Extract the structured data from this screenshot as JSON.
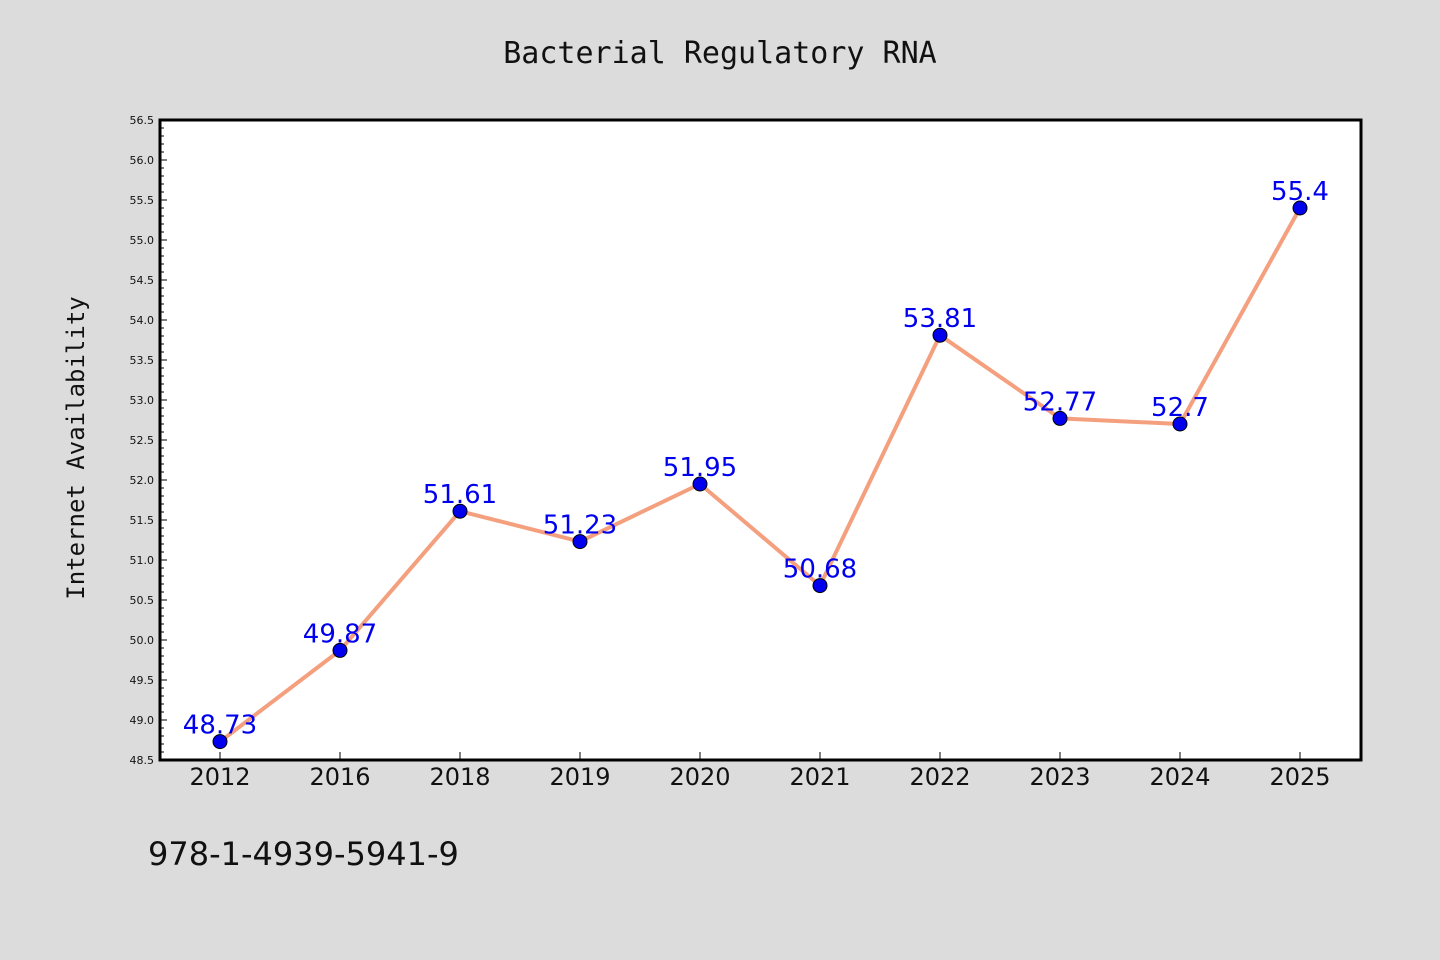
{
  "chart_data": {
    "type": "line",
    "title": "Bacterial Regulatory RNA",
    "xlabel": "",
    "ylabel": "Internet Availability",
    "categories": [
      "2012",
      "2016",
      "2018",
      "2019",
      "2020",
      "2021",
      "2022",
      "2023",
      "2024",
      "2025"
    ],
    "series": [
      {
        "values": [
          48.73,
          49.87,
          51.61,
          51.23,
          51.95,
          50.68,
          53.81,
          52.77,
          52.7,
          55.4
        ],
        "data_labels": [
          "48.73",
          "49.87",
          "51.61",
          "51.23",
          "51.95",
          "50.68",
          "53.81",
          "52.77",
          "52.7",
          "55.4"
        ]
      }
    ],
    "ylim": [
      48.5,
      56.5
    ],
    "yticks": [
      "48.5",
      "49.0",
      "49.5",
      "50.0",
      "50.5",
      "51.0",
      "51.5",
      "52.0",
      "52.5",
      "53.0",
      "53.5",
      "54.0",
      "54.5",
      "55.0",
      "55.5",
      "56.0",
      "56.5"
    ],
    "grid": false,
    "legend": "none",
    "colors": {
      "background": "#dcdcdc",
      "plot_area": "#ffffff",
      "line": "#f4a07e",
      "marker": "#0000ee",
      "data_label": "#0000ee"
    }
  },
  "footnote": "978-1-4939-5941-9"
}
